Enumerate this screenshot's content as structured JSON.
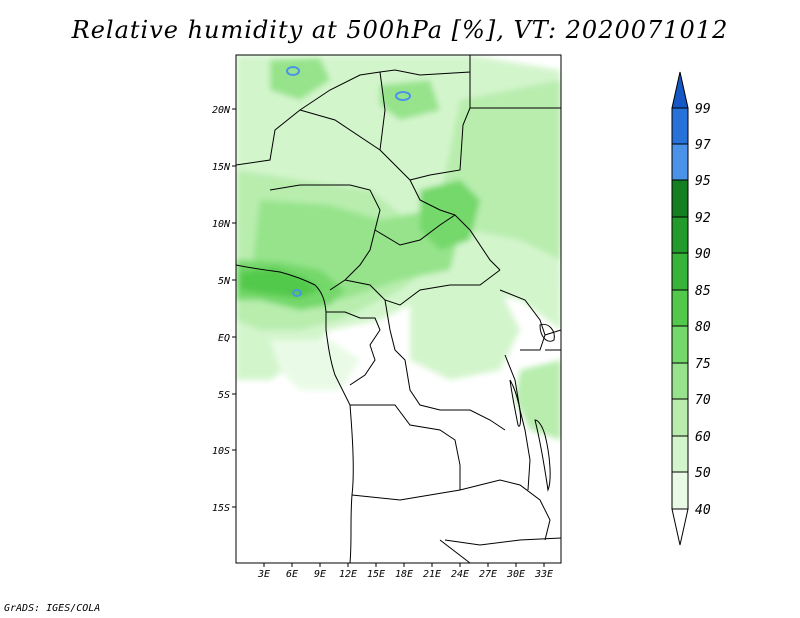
{
  "title": "Relative humidity at 500hPa [%], VT: 2020071012",
  "credit": "GrADS: IGES/COLA",
  "colors": {
    "bin_40_50": "#e9fbe6",
    "bin_50_60": "#d3f5cc",
    "bin_60_70": "#b8edae",
    "bin_70_75": "#96e38b",
    "bin_75_80": "#74d86a",
    "bin_80_85": "#52c94b",
    "bin_85_90": "#37b33a",
    "bin_90_92": "#239a2c",
    "bin_92_95": "#137f20",
    "bin_95_97": "#4a93e8",
    "bin_97_99": "#2672d9",
    "bin_99_up": "#1557c4",
    "borders": "#000000"
  },
  "map": {
    "lat_labels": [
      "20N",
      "15N",
      "10N",
      "5N",
      "EQ",
      "5S",
      "10S",
      "15S"
    ],
    "lon_labels": [
      "3E",
      "6E",
      "9E",
      "12E",
      "15E",
      "18E",
      "21E",
      "24E",
      "27E",
      "30E",
      "33E"
    ]
  },
  "colorbar": {
    "labels": [
      "99",
      "97",
      "95",
      "92",
      "90",
      "85",
      "80",
      "75",
      "70",
      "60",
      "50",
      "40"
    ]
  }
}
